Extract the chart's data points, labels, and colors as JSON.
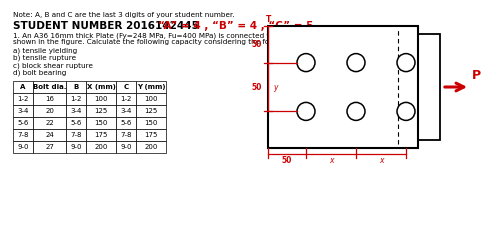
{
  "note_text": "Note: A, B and C are the last 3 digits of your student number.",
  "student_line_black": "STUDENT NUMBER 2016142445 ",
  "student_line_red": "“A” = 4 , “B” = 4 , “C” = 5",
  "problem_line1": "1. An A36 16mm thick Plate (Fy=248 MPa, Fu=400 MPa) is connected to a gusset plate by 6 bolts as",
  "problem_line2": "shown in the figure. Calculate the following capacity considering the following limit states:",
  "list_items": [
    "a) tensile yielding",
    "b) tensile rupture",
    "c) block shear rupture",
    "d) bolt bearing"
  ],
  "table_headers": [
    "A",
    "Bolt dia.",
    "B",
    "X (mm)",
    "C",
    "Y (mm)"
  ],
  "table_rows": [
    [
      "1-2",
      "16",
      "1-2",
      "100",
      "1-2",
      "100"
    ],
    [
      "3-4",
      "20",
      "3-4",
      "125",
      "3-4",
      "125"
    ],
    [
      "5-6",
      "22",
      "5-6",
      "150",
      "5-6",
      "150"
    ],
    [
      "7-8",
      "24",
      "7-8",
      "175",
      "7-8",
      "175"
    ],
    [
      "9-0",
      "27",
      "9-0",
      "200",
      "9-0",
      "200"
    ]
  ],
  "bg_color": "#ffffff",
  "text_color": "#000000",
  "red_color": "#cc0000"
}
